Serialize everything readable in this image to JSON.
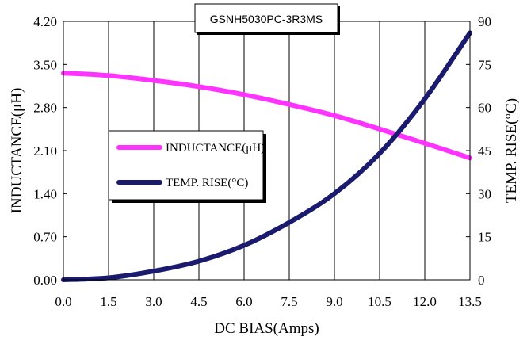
{
  "chart_data": {
    "type": "line",
    "title": "GSNH5030PC-3R3MS",
    "xlabel": "DC BIAS(Amps)",
    "ylabel": "INDUCTANCE(μH)",
    "y2label": "TEMP. RISE(°C)",
    "xlim": [
      0,
      13.5
    ],
    "ylim": [
      0,
      4.2
    ],
    "y2lim": [
      0,
      90
    ],
    "x_ticks": [
      "0.0",
      "1.5",
      "3.0",
      "4.5",
      "6.0",
      "7.5",
      "9.0",
      "10.5",
      "12.0",
      "13.5"
    ],
    "y_ticks": [
      "0.00",
      "0.70",
      "1.40",
      "2.10",
      "2.80",
      "3.50",
      "4.20"
    ],
    "y2_ticks": [
      "0",
      "15",
      "30",
      "45",
      "60",
      "75",
      "90"
    ],
    "grid": {
      "vertical": true,
      "horizontal": false
    },
    "legend_position": "left-middle",
    "series": [
      {
        "name": "INDUCTANCE(μH)",
        "axis": "left",
        "color": "#ff33ff",
        "x": [
          0,
          1.5,
          3.0,
          4.5,
          6.0,
          7.5,
          9.0,
          10.5,
          12.0,
          13.5
        ],
        "values": [
          3.36,
          3.32,
          3.24,
          3.14,
          3.01,
          2.85,
          2.67,
          2.45,
          2.22,
          1.98
        ]
      },
      {
        "name": "TEMP. RISE(°C)",
        "axis": "right",
        "color": "#1a1a6e",
        "x": [
          0,
          1.5,
          3.0,
          4.5,
          6.0,
          7.5,
          9.0,
          10.5,
          12.0,
          13.5
        ],
        "values": [
          0,
          0.7,
          3,
          6.5,
          12,
          20,
          30,
          44,
          63,
          86
        ]
      }
    ]
  }
}
